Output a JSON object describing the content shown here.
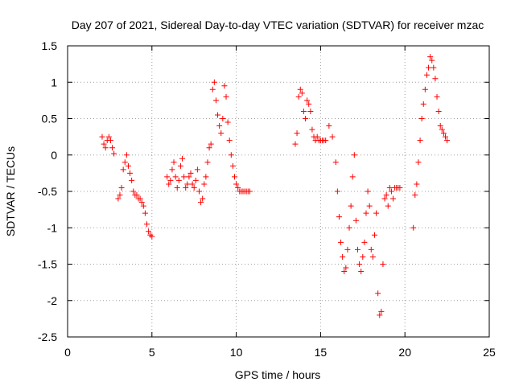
{
  "chart_data": {
    "type": "scatter",
    "title": "Day 207 of 2021, Sidereal Day-to-day VTEC variation (SDTVAR) for receiver mzac",
    "xlabel": "GPS time / hours",
    "ylabel": "SDTVAR / TECUs",
    "xlim": [
      0,
      25
    ],
    "ylim": [
      -2.5,
      1.5
    ],
    "xticks": [
      0,
      5,
      10,
      15,
      20,
      25
    ],
    "xtick_labels": [
      "0",
      "5",
      "10",
      "15",
      "20",
      "25"
    ],
    "yticks": [
      -2.5,
      -2,
      -1.5,
      -1,
      -0.5,
      0,
      0.5,
      1,
      1.5
    ],
    "ytick_labels": [
      "-2.5",
      "-2",
      "-1.5",
      "-1",
      "-0.5",
      "0",
      "0.5",
      "1",
      "1.5"
    ],
    "grid": true,
    "marker": "+",
    "color": "#ff0000",
    "series": [
      {
        "name": "SDTVAR",
        "x": [
          2.05,
          2.15,
          2.25,
          2.35,
          2.45,
          2.55,
          2.65,
          2.75,
          3.0,
          3.1,
          3.2,
          3.3,
          3.4,
          3.5,
          3.6,
          3.7,
          3.8,
          3.9,
          4.0,
          4.1,
          4.2,
          4.3,
          4.4,
          4.5,
          4.6,
          4.7,
          4.8,
          4.9,
          5.0,
          5.9,
          6.0,
          6.1,
          6.2,
          6.3,
          6.4,
          6.5,
          6.6,
          6.7,
          6.8,
          6.9,
          7.0,
          7.1,
          7.2,
          7.3,
          7.4,
          7.5,
          7.6,
          7.7,
          7.8,
          7.9,
          8.0,
          8.1,
          8.2,
          8.3,
          8.4,
          8.5,
          8.6,
          8.7,
          8.8,
          8.9,
          9.0,
          9.1,
          9.2,
          9.3,
          9.4,
          9.5,
          9.6,
          9.7,
          9.8,
          9.9,
          10.0,
          10.1,
          10.2,
          10.3,
          10.4,
          10.5,
          10.6,
          10.7,
          10.8,
          13.5,
          13.6,
          13.7,
          13.8,
          13.9,
          14.0,
          14.1,
          14.2,
          14.3,
          14.4,
          14.5,
          14.6,
          14.7,
          14.8,
          14.9,
          15.0,
          15.1,
          15.2,
          15.3,
          15.5,
          15.7,
          15.9,
          16.0,
          16.1,
          16.2,
          16.3,
          16.4,
          16.5,
          16.6,
          16.7,
          16.8,
          16.9,
          17.0,
          17.1,
          17.2,
          17.3,
          17.4,
          17.5,
          17.6,
          17.7,
          17.8,
          17.9,
          18.0,
          18.1,
          18.2,
          18.3,
          18.4,
          18.5,
          18.6,
          18.7,
          18.8,
          18.9,
          19.0,
          19.1,
          19.2,
          19.3,
          19.4,
          19.5,
          19.6,
          19.7,
          20.5,
          20.6,
          20.7,
          20.8,
          20.9,
          21.0,
          21.1,
          21.2,
          21.3,
          21.4,
          21.5,
          21.6,
          21.7,
          21.8,
          21.9,
          22.0,
          22.1,
          22.2,
          22.3,
          22.4,
          22.5
        ],
        "y": [
          0.25,
          0.15,
          0.1,
          0.2,
          0.25,
          0.2,
          0.1,
          0.02,
          -0.6,
          -0.55,
          -0.45,
          -0.2,
          -0.1,
          0.0,
          -0.15,
          -0.25,
          -0.35,
          -0.5,
          -0.55,
          -0.55,
          -0.6,
          -0.6,
          -0.65,
          -0.7,
          -0.8,
          -0.95,
          -1.05,
          -1.1,
          -1.12,
          -0.3,
          -0.4,
          -0.35,
          -0.2,
          -0.1,
          -0.3,
          -0.45,
          -0.35,
          -0.15,
          -0.05,
          -0.3,
          -0.45,
          -0.4,
          -0.3,
          -0.25,
          -0.4,
          -0.45,
          -0.35,
          -0.2,
          -0.5,
          -0.65,
          -0.6,
          -0.4,
          -0.3,
          -0.1,
          0.1,
          0.15,
          0.9,
          1.0,
          0.75,
          0.55,
          0.4,
          0.3,
          0.5,
          0.95,
          0.8,
          0.45,
          0.2,
          0.0,
          -0.15,
          -0.3,
          -0.4,
          -0.45,
          -0.5,
          -0.5,
          -0.5,
          -0.5,
          -0.5,
          -0.5,
          -0.5,
          0.15,
          0.3,
          0.8,
          0.9,
          0.85,
          0.6,
          0.5,
          0.75,
          0.7,
          0.6,
          0.35,
          0.25,
          0.2,
          0.25,
          0.2,
          0.2,
          0.2,
          0.2,
          0.2,
          0.4,
          0.25,
          -0.1,
          -0.5,
          -0.85,
          -1.2,
          -1.4,
          -1.6,
          -1.55,
          -1.3,
          -1.0,
          -0.7,
          -0.3,
          0.0,
          -0.9,
          -1.3,
          -1.5,
          -1.6,
          -1.4,
          -1.2,
          -0.8,
          -0.5,
          -0.7,
          -1.3,
          -1.4,
          -1.1,
          -0.8,
          -1.9,
          -2.2,
          -2.15,
          -1.5,
          -0.6,
          -0.55,
          -0.7,
          -0.45,
          -0.5,
          -0.6,
          -0.45,
          -0.45,
          -0.45,
          -0.45,
          -1.0,
          -0.55,
          -0.4,
          -0.1,
          0.2,
          0.5,
          0.7,
          0.9,
          1.1,
          1.2,
          1.35,
          1.3,
          1.2,
          1.05,
          0.8,
          0.6,
          0.4,
          0.35,
          0.3,
          0.25,
          0.2
        ]
      }
    ]
  }
}
